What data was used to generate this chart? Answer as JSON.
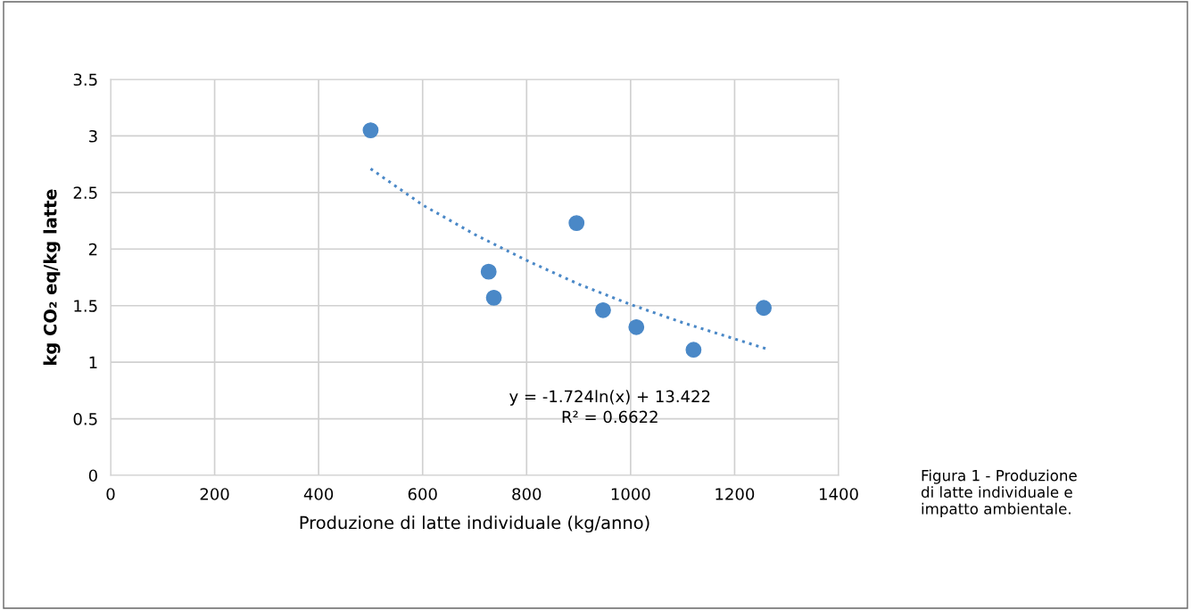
{
  "chart_data": {
    "type": "scatter",
    "xlabel": "Produzione di latte individuale (kg/anno)",
    "ylabel": "kg CO₂ eq/kg latte",
    "series": [
      {
        "color": "#4a88c7",
        "marker": "circle",
        "x": [
          500,
          727,
          737,
          896,
          947,
          1011,
          1121,
          1256
        ],
        "values": [
          3.05,
          1.8,
          1.57,
          2.23,
          1.46,
          1.31,
          1.11,
          1.48
        ]
      },
      {
        "type": "line",
        "color": "#4a88c7",
        "line_style": "dotted",
        "x": [
          500,
          600,
          700,
          800,
          900,
          1000,
          1100,
          1260
        ],
        "values": [
          2.71,
          2.39,
          2.13,
          1.9,
          1.69,
          1.51,
          1.35,
          1.12
        ]
      }
    ],
    "xlim": [
      0,
      1400
    ],
    "xticks": [
      0,
      200,
      400,
      600,
      800,
      1000,
      1200,
      1400
    ],
    "ylim": [
      0,
      3.5
    ],
    "yticks": [
      0,
      0.5,
      1,
      1.5,
      2,
      2.5,
      3,
      3.5
    ],
    "grid": true,
    "annotations": [
      "y = -1.724ln(x) + 13.422\nR² = 0.6622",
      "Figura 1 - Produzione\ndi latte individuale e\nimpatto ambientale."
    ]
  }
}
